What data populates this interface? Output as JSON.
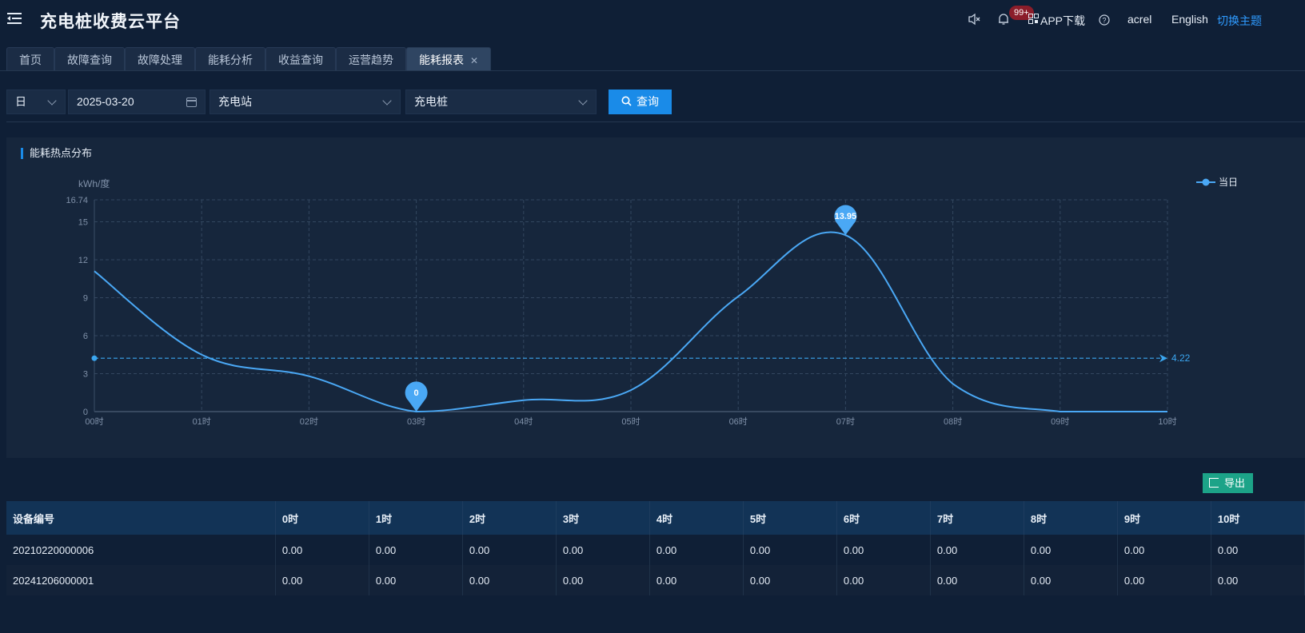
{
  "header": {
    "title": "充电桩收费云平台",
    "badge": "99+",
    "app_download": "APP下载",
    "user": "acrel",
    "language": "English",
    "theme_switch": "切换主题"
  },
  "tabs": [
    {
      "label": "首页"
    },
    {
      "label": "故障查询"
    },
    {
      "label": "故障处理"
    },
    {
      "label": "能耗分析"
    },
    {
      "label": "收益查询"
    },
    {
      "label": "运营趋势"
    },
    {
      "label": "能耗报表",
      "active": true
    }
  ],
  "filters": {
    "period": "日",
    "date": "2025-03-20",
    "station_placeholder": "充电站",
    "pile_placeholder": "充电桩",
    "query_label": "查询"
  },
  "panel": {
    "title": "能耗热点分布"
  },
  "chart_data": {
    "type": "line",
    "title": "",
    "ylabel": "kWh/度",
    "ylim": [
      0,
      16.74
    ],
    "yticks": [
      0,
      3,
      6,
      9,
      12,
      15,
      16.74
    ],
    "categories": [
      "00时",
      "01时",
      "02时",
      "03时",
      "04时",
      "05时",
      "06时",
      "07时",
      "08时",
      "09时",
      "10时"
    ],
    "series": [
      {
        "name": "当日",
        "color": "#4aa8f5",
        "values": [
          11.1,
          4.5,
          2.8,
          0,
          0.9,
          1.7,
          9.1,
          13.95,
          2.2,
          0,
          0
        ]
      }
    ],
    "markers": [
      {
        "label": "13.95",
        "category": "07时",
        "value": 13.95
      },
      {
        "label": "0",
        "category": "03时",
        "value": 0
      }
    ],
    "average_line": {
      "value": 4.22,
      "label": "4.22"
    },
    "legend_position": "top-right",
    "grid": true
  },
  "export_label": "导出",
  "table": {
    "headers": [
      "设备编号",
      "0时",
      "1时",
      "2时",
      "3时",
      "4时",
      "5时",
      "6时",
      "7时",
      "8时",
      "9时",
      "10时"
    ],
    "rows": [
      [
        "20210220000006",
        "0.00",
        "0.00",
        "0.00",
        "0.00",
        "0.00",
        "0.00",
        "0.00",
        "0.00",
        "0.00",
        "0.00",
        "0.00"
      ],
      [
        "20241206000001",
        "0.00",
        "0.00",
        "0.00",
        "0.00",
        "0.00",
        "0.00",
        "0.00",
        "0.00",
        "0.00",
        "0.00",
        "0.00"
      ]
    ]
  },
  "colors": {
    "accent": "#1a8be8",
    "export": "#1ca388",
    "series": "#4aa8f5",
    "background": "#0f1f36"
  }
}
